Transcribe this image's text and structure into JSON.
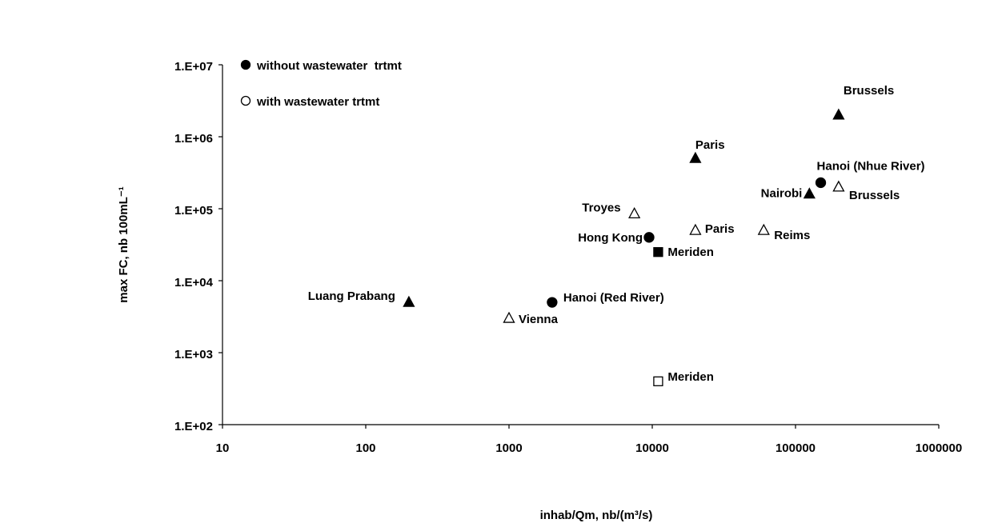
{
  "chart_data": {
    "type": "scatter",
    "xlabel": "inhab/Qm, nb/(m³/s)",
    "ylabel": "max FC, nb 100mL⁻¹",
    "xlog": true,
    "ylog": true,
    "xlim": [
      10,
      1000000
    ],
    "ylim": [
      100,
      10000000
    ],
    "xticks": [
      10,
      100,
      1000,
      10000,
      100000,
      1000000
    ],
    "yticks": [
      {
        "value": 100,
        "label": "1.E+02"
      },
      {
        "value": 1000,
        "label": "1.E+03"
      },
      {
        "value": 10000,
        "label": "1.E+04"
      },
      {
        "value": 100000,
        "label": "1.E+05"
      },
      {
        "value": 1000000,
        "label": "1.E+06"
      },
      {
        "value": 10000000,
        "label": "1.E+07"
      }
    ],
    "grid": false,
    "legend": "upper left",
    "series": [
      {
        "name": "without wastewater  trtmt",
        "color": "#000000",
        "fill": "#000000",
        "x": [
          200,
          2000,
          9500,
          11000,
          20000,
          125000,
          150000,
          200000
        ],
        "values": [
          5000,
          5000,
          40000,
          25000,
          500000,
          160000,
          230000,
          2000000
        ],
        "markers": [
          "triangle",
          "circle",
          "circle",
          "square",
          "triangle",
          "triangle",
          "circle",
          "triangle"
        ],
        "labels": [
          "Luang Prabang",
          "Hanoi (Red River)",
          "Hong Kong",
          "Meriden",
          "Paris",
          "Nairobi",
          "Hanoi (Nhue River)",
          "Brussels"
        ]
      },
      {
        "name": "with wastewater trtmt",
        "color": "#000000",
        "fill": "#ffffff",
        "x": [
          1000,
          7500,
          11000,
          20000,
          60000,
          200000
        ],
        "values": [
          3000,
          85000,
          400,
          50000,
          50000,
          200000
        ],
        "markers": [
          "triangle",
          "triangle",
          "square",
          "triangle",
          "triangle",
          "triangle"
        ],
        "labels": [
          "Vienna",
          "Troyes",
          "Meriden",
          "Paris",
          "Reims",
          "Brussels"
        ]
      }
    ]
  }
}
